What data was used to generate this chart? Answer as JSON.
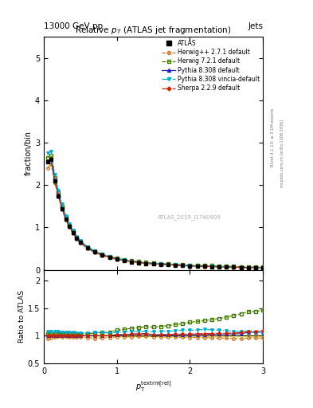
{
  "title": "Relative $p_{T}$ (ATLAS jet fragmentation)",
  "header_left": "13000 GeV pp",
  "header_right": "Jets",
  "ylabel_main": "fraction/bin",
  "ylabel_ratio": "Ratio to ATLAS",
  "xlabel": "$p_{\\textrm{T}}^{\\textrm{textrm[rel]}}$",
  "xlim": [
    0,
    3
  ],
  "ylim_main": [
    0,
    5.5
  ],
  "ylim_ratio": [
    0.5,
    2.2
  ],
  "watermark": "ATLAS_2019_I1740909",
  "rivet_text": "Rivet 3.1.10; ≥ 3.1M events",
  "mcplots_text": "mcplots.cern.ch [arXiv:1306.3436]",
  "x_data": [
    0.05,
    0.1,
    0.15,
    0.2,
    0.25,
    0.3,
    0.35,
    0.4,
    0.45,
    0.5,
    0.6,
    0.7,
    0.8,
    0.9,
    1.0,
    1.1,
    1.2,
    1.3,
    1.4,
    1.5,
    1.6,
    1.7,
    1.8,
    1.9,
    2.0,
    2.1,
    2.2,
    2.3,
    2.4,
    2.5,
    2.6,
    2.7,
    2.8,
    2.9,
    3.0
  ],
  "atlas_y": [
    2.55,
    2.6,
    2.1,
    1.75,
    1.45,
    1.2,
    1.02,
    0.88,
    0.75,
    0.65,
    0.52,
    0.42,
    0.35,
    0.3,
    0.25,
    0.22,
    0.19,
    0.17,
    0.15,
    0.14,
    0.13,
    0.12,
    0.11,
    0.1,
    0.09,
    0.085,
    0.08,
    0.075,
    0.07,
    0.065,
    0.06,
    0.055,
    0.05,
    0.048,
    0.045
  ],
  "herwig_pp_y": [
    2.4,
    2.5,
    2.05,
    1.72,
    1.42,
    1.18,
    1.0,
    0.86,
    0.73,
    0.63,
    0.5,
    0.4,
    0.335,
    0.29,
    0.245,
    0.215,
    0.186,
    0.167,
    0.148,
    0.137,
    0.127,
    0.117,
    0.107,
    0.097,
    0.087,
    0.082,
    0.077,
    0.072,
    0.067,
    0.062,
    0.057,
    0.052,
    0.048,
    0.046,
    0.043
  ],
  "herwig7_y": [
    2.65,
    2.7,
    2.18,
    1.82,
    1.5,
    1.24,
    1.05,
    0.91,
    0.77,
    0.67,
    0.54,
    0.44,
    0.37,
    0.32,
    0.275,
    0.245,
    0.215,
    0.195,
    0.175,
    0.162,
    0.152,
    0.142,
    0.132,
    0.122,
    0.112,
    0.107,
    0.102,
    0.097,
    0.092,
    0.087,
    0.082,
    0.077,
    0.072,
    0.069,
    0.066
  ],
  "pythia_def_y": [
    2.55,
    2.6,
    2.1,
    1.75,
    1.45,
    1.2,
    1.02,
    0.88,
    0.75,
    0.65,
    0.52,
    0.42,
    0.35,
    0.3,
    0.255,
    0.225,
    0.195,
    0.175,
    0.155,
    0.143,
    0.132,
    0.122,
    0.112,
    0.102,
    0.092,
    0.087,
    0.082,
    0.077,
    0.072,
    0.067,
    0.062,
    0.057,
    0.053,
    0.051,
    0.048
  ],
  "pythia_vin_y": [
    2.75,
    2.8,
    2.25,
    1.88,
    1.55,
    1.28,
    1.08,
    0.93,
    0.79,
    0.685,
    0.545,
    0.445,
    0.37,
    0.315,
    0.265,
    0.235,
    0.205,
    0.183,
    0.162,
    0.15,
    0.14,
    0.13,
    0.12,
    0.11,
    0.099,
    0.094,
    0.089,
    0.083,
    0.077,
    0.071,
    0.065,
    0.059,
    0.054,
    0.051,
    0.048
  ],
  "sherpa_y": [
    2.55,
    2.62,
    2.1,
    1.75,
    1.45,
    1.2,
    1.02,
    0.88,
    0.75,
    0.65,
    0.52,
    0.42,
    0.35,
    0.3,
    0.255,
    0.225,
    0.196,
    0.176,
    0.156,
    0.143,
    0.133,
    0.123,
    0.113,
    0.103,
    0.093,
    0.088,
    0.083,
    0.078,
    0.073,
    0.068,
    0.063,
    0.058,
    0.054,
    0.052,
    0.049
  ],
  "atlas_err": [
    0.05,
    0.05,
    0.04,
    0.035,
    0.03,
    0.025,
    0.02,
    0.018,
    0.015,
    0.013,
    0.01,
    0.008,
    0.007,
    0.006,
    0.005,
    0.0045,
    0.004,
    0.0035,
    0.003,
    0.0028,
    0.0026,
    0.0024,
    0.0022,
    0.002,
    0.0018,
    0.0017,
    0.0016,
    0.0015,
    0.0014,
    0.0013,
    0.0012,
    0.0011,
    0.001,
    0.001,
    0.001
  ],
  "colors": {
    "atlas": "#000000",
    "herwig_pp": "#cc7722",
    "herwig7": "#447700",
    "pythia_def": "#2222bb",
    "pythia_vin": "#00aacc",
    "sherpa": "#cc2200"
  },
  "ratio_herwig_pp": [
    0.94,
    0.962,
    0.976,
    0.983,
    0.979,
    0.983,
    0.98,
    0.977,
    0.973,
    0.969,
    0.962,
    0.952,
    0.957,
    0.967,
    0.98,
    0.977,
    0.979,
    0.982,
    0.987,
    0.979,
    0.977,
    0.975,
    0.973,
    0.97,
    0.967,
    0.965,
    0.963,
    0.96,
    0.957,
    0.954,
    0.95,
    0.945,
    0.96,
    0.958,
    0.956
  ],
  "ratio_herwig7": [
    1.04,
    1.038,
    1.038,
    1.04,
    1.034,
    1.033,
    1.029,
    1.034,
    1.027,
    1.031,
    1.038,
    1.048,
    1.057,
    1.067,
    1.1,
    1.114,
    1.132,
    1.147,
    1.167,
    1.157,
    1.169,
    1.183,
    1.2,
    1.22,
    1.244,
    1.259,
    1.275,
    1.293,
    1.314,
    1.338,
    1.367,
    1.4,
    1.44,
    1.438,
    1.467
  ],
  "ratio_pythia_def": [
    1.0,
    1.0,
    1.0,
    1.0,
    1.0,
    1.0,
    1.0,
    1.0,
    1.0,
    1.0,
    1.0,
    1.0,
    1.0,
    1.0,
    1.02,
    1.023,
    1.026,
    1.029,
    1.033,
    1.021,
    1.015,
    1.017,
    1.018,
    1.02,
    1.022,
    1.024,
    1.025,
    1.027,
    1.029,
    1.031,
    1.033,
    1.036,
    1.06,
    1.063,
    1.067
  ],
  "ratio_pythia_vin": [
    1.078,
    1.077,
    1.071,
    1.074,
    1.069,
    1.067,
    1.059,
    1.057,
    1.053,
    1.054,
    1.048,
    1.06,
    1.057,
    1.05,
    1.06,
    1.068,
    1.079,
    1.076,
    1.08,
    1.071,
    1.077,
    1.083,
    1.091,
    1.1,
    1.1,
    1.106,
    1.113,
    1.107,
    1.1,
    1.092,
    1.083,
    1.073,
    1.08,
    1.063,
    1.067
  ],
  "ratio_sherpa": [
    1.0,
    1.008,
    1.0,
    1.0,
    1.0,
    1.0,
    1.0,
    1.0,
    1.0,
    1.0,
    1.0,
    1.0,
    1.0,
    1.0,
    1.02,
    1.023,
    1.032,
    1.035,
    1.04,
    1.021,
    1.023,
    1.025,
    1.027,
    1.03,
    1.033,
    1.035,
    1.038,
    1.04,
    1.043,
    1.046,
    1.05,
    1.055,
    1.08,
    1.083,
    1.089
  ],
  "atlas_ratio_err": [
    0.02,
    0.019,
    0.019,
    0.02,
    0.021,
    0.021,
    0.02,
    0.02,
    0.02,
    0.02,
    0.019,
    0.019,
    0.02,
    0.02,
    0.02,
    0.02,
    0.021,
    0.021,
    0.02,
    0.02,
    0.02,
    0.02,
    0.02,
    0.02,
    0.02,
    0.02,
    0.02,
    0.02,
    0.02,
    0.02,
    0.02,
    0.02,
    0.02,
    0.021,
    0.022
  ]
}
